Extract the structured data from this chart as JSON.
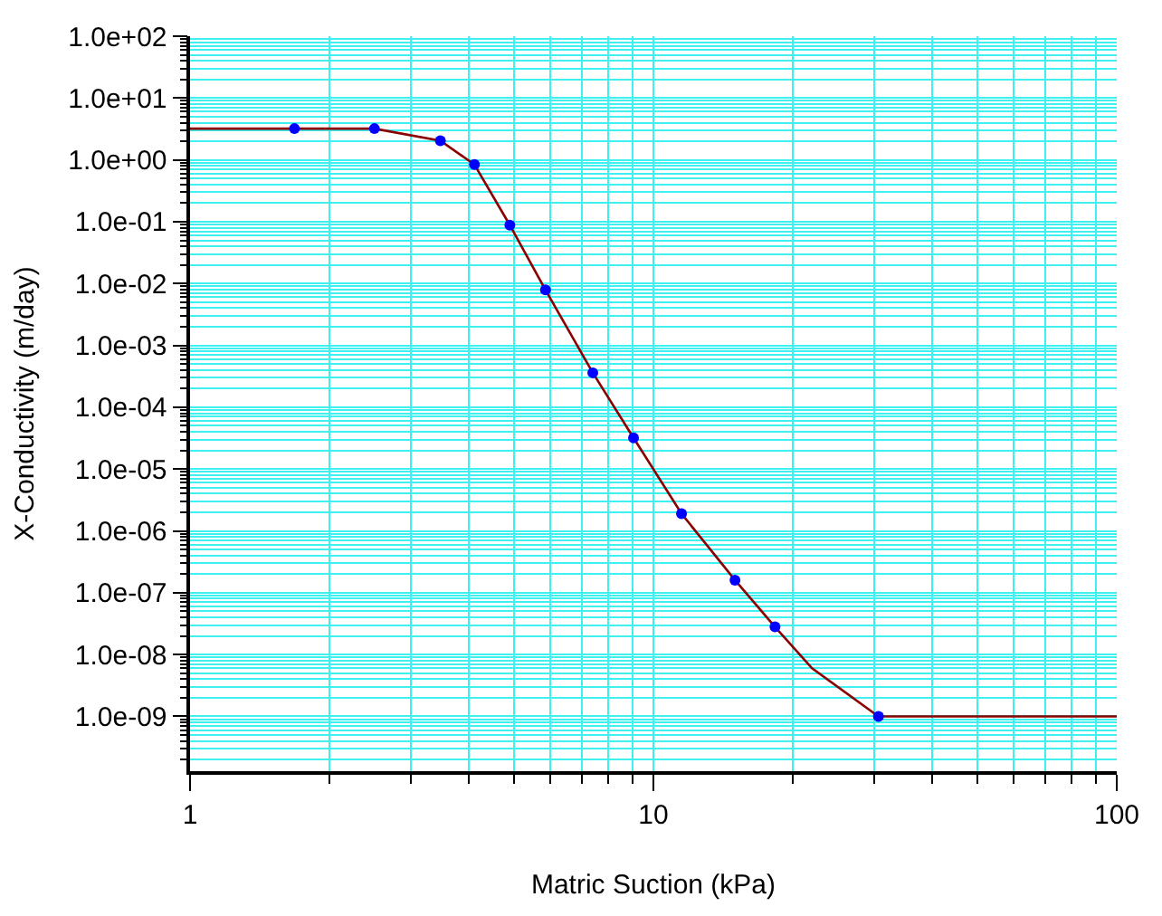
{
  "chart_data": {
    "type": "line",
    "xlabel": "Matric Suction (kPa)",
    "ylabel": "X-Conductivity (m/day)",
    "log": "xy",
    "grid": true,
    "xlim": [
      1,
      100
    ],
    "xticks": [
      1,
      10,
      100
    ],
    "ylim": [
      1.3e-10,
      100
    ],
    "yticks": [
      {
        "value": 100,
        "label": "1.0e+02"
      },
      {
        "value": 10,
        "label": "1.0e+01"
      },
      {
        "value": 1,
        "label": "1.0e+00"
      },
      {
        "value": 0.1,
        "label": "1.0e-01"
      },
      {
        "value": 0.01,
        "label": "1.0e-02"
      },
      {
        "value": 0.001,
        "label": "1.0e-03"
      },
      {
        "value": 0.0001,
        "label": "1.0e-04"
      },
      {
        "value": 1e-05,
        "label": "1.0e-05"
      },
      {
        "value": 1e-06,
        "label": "1.0e-06"
      },
      {
        "value": 1e-07,
        "label": "1.0e-07"
      },
      {
        "value": 1e-08,
        "label": "1.0e-08"
      },
      {
        "value": 1e-09,
        "label": "1.0e-09"
      }
    ],
    "series": [
      {
        "color": "#8b0000",
        "marker": "none",
        "x": [
          1,
          1.68,
          2.5,
          3.47,
          4.11,
          4.9,
          5.85,
          7.4,
          9.06,
          11.5,
          15,
          18.3,
          22,
          30.6,
          100
        ],
        "values": [
          3.2,
          3.2,
          3.2,
          2.04,
          0.84,
          0.088,
          0.0079,
          0.00036,
          3.2e-05,
          1.9e-06,
          1.6e-07,
          2.8e-08,
          6e-09,
          1e-09,
          1e-09
        ]
      },
      {
        "type": "scatter",
        "color": "#0000ff",
        "marker": "circle",
        "x": [
          1.68,
          2.5,
          3.47,
          4.11,
          4.9,
          5.85,
          7.4,
          9.06,
          11.5,
          15,
          18.3,
          30.6
        ],
        "values": [
          3.2,
          3.2,
          2.04,
          0.84,
          0.088,
          0.0079,
          0.00036,
          3.2e-05,
          1.9e-06,
          1.6e-07,
          2.8e-08,
          1e-09
        ]
      }
    ]
  }
}
